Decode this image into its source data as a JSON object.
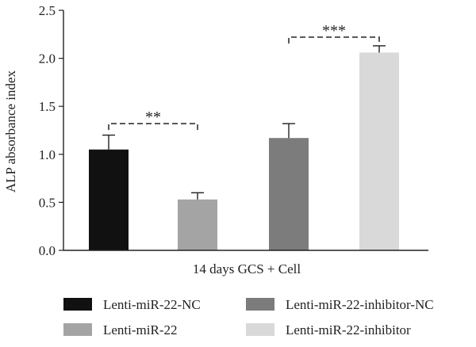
{
  "chart_data": {
    "type": "bar",
    "title": "",
    "ylabel": "ALP absorbance index",
    "xlabel": "14 days GCS + Cell",
    "ylim": [
      0,
      2.5
    ],
    "yticks": [
      "0.0",
      "0.5",
      "1.0",
      "1.5",
      "2.0",
      "2.5"
    ],
    "grid": false,
    "legend_position": "bottom",
    "series": [
      {
        "name": "Lenti-miR-22-NC",
        "value": 1.05,
        "error": 0.15,
        "color": "#111111"
      },
      {
        "name": "Lenti-miR-22",
        "value": 0.53,
        "error": 0.07,
        "color": "#a4a4a4"
      },
      {
        "name": "Lenti-miR-22-inhibitor-NC",
        "value": 1.17,
        "error": 0.15,
        "color": "#7c7c7c"
      },
      {
        "name": "Lenti-miR-22-inhibitor",
        "value": 2.06,
        "error": 0.07,
        "color": "#d9d9d9"
      }
    ],
    "annotations": [
      {
        "label": "**",
        "from": 0,
        "to": 1,
        "y": 1.32
      },
      {
        "label": "***",
        "from": 2,
        "to": 3,
        "y": 2.22
      }
    ]
  }
}
